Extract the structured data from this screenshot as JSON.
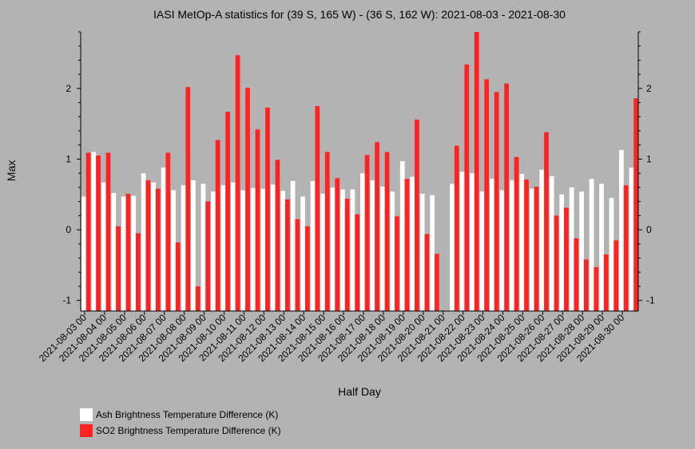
{
  "chart_data": {
    "type": "bar",
    "title": "IASI MetOp-A statistics for (39 S, 165 W) - (36 S, 162 W): 2021-08-03 - 2021-08-30",
    "xlabel": "Half Day",
    "ylabel": "Max",
    "ylim": [
      -1.15,
      2.8
    ],
    "yticks": [
      -1,
      0,
      1,
      2
    ],
    "grid": false,
    "legend_position": "bottom-left",
    "colors": {
      "background": "#b3b3b3",
      "ash": "#ffffff",
      "so2": "#ff2222"
    },
    "x_tick_labels": [
      "2021-08-03 00",
      "2021-08-04 00",
      "2021-08-05 00",
      "2021-08-06 00",
      "2021-08-07 00",
      "2021-08-08 00",
      "2021-08-09 00",
      "2021-08-10 00",
      "2021-08-11 00",
      "2021-08-12 00",
      "2021-08-13 00",
      "2021-08-14 00",
      "2021-08-15 00",
      "2021-08-16 00",
      "2021-08-17 00",
      "2021-08-18 00",
      "2021-08-19 00",
      "2021-08-20 00",
      "2021-08-21 00",
      "2021-08-22 00",
      "2021-08-23 00",
      "2021-08-24 00",
      "2021-08-25 00",
      "2021-08-26 00",
      "2021-08-27 00",
      "2021-08-28 00",
      "2021-08-29 00",
      "2021-08-30 00"
    ],
    "series": [
      {
        "name": "Ash Brightness Temperature Difference (K)",
        "values": [
          0.47,
          1.1,
          0.67,
          0.52,
          0.47,
          0.48,
          0.8,
          0.67,
          0.88,
          0.56,
          0.63,
          0.7,
          0.65,
          0.54,
          0.63,
          0.67,
          0.56,
          0.59,
          0.58,
          0.64,
          0.55,
          0.69,
          0.47,
          0.69,
          0.51,
          0.6,
          0.57,
          0.57,
          0.8,
          0.7,
          0.61,
          0.54,
          0.97,
          0.75,
          0.51,
          0.49,
          null,
          0.65,
          0.82,
          0.8,
          0.54,
          0.72,
          0.56,
          0.7,
          0.79,
          0.58,
          0.85,
          0.76,
          0.5,
          0.6,
          0.54,
          0.72,
          0.65,
          0.45,
          1.13,
          0.88
        ]
      },
      {
        "name": "SO2 Brightness Temperature Difference (K)",
        "values": [
          1.09,
          1.05,
          1.09,
          0.05,
          0.51,
          -0.05,
          0.7,
          0.58,
          1.09,
          -0.18,
          2.02,
          -0.8,
          0.4,
          1.27,
          1.67,
          2.47,
          2.01,
          1.42,
          1.73,
          0.99,
          0.43,
          0.15,
          0.05,
          1.75,
          1.1,
          0.73,
          0.44,
          0.22,
          1.06,
          1.24,
          1.1,
          0.19,
          0.72,
          1.56,
          -0.06,
          -0.34,
          null,
          1.19,
          2.34,
          2.8,
          2.13,
          1.95,
          2.07,
          1.03,
          0.71,
          0.61,
          1.38,
          0.2,
          0.31,
          -0.12,
          -0.42,
          -0.53,
          -0.35,
          -0.15,
          0.63,
          1.86
        ]
      }
    ]
  }
}
